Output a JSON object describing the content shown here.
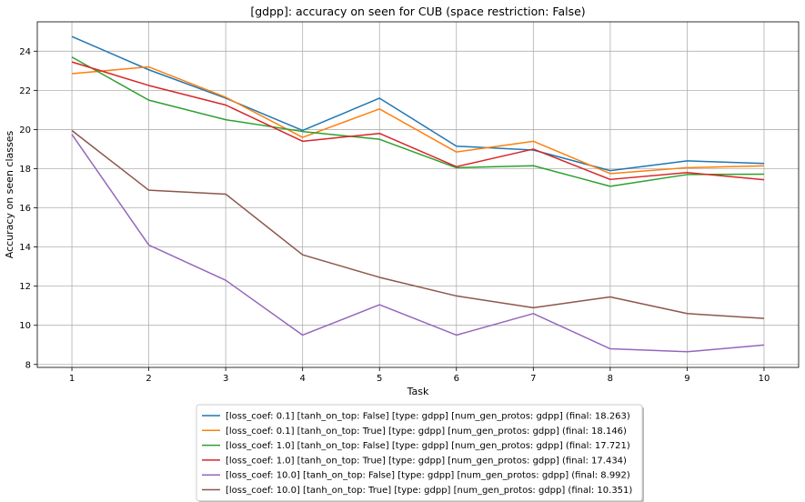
{
  "chart_data": {
    "type": "line",
    "title": "[gdpp]: accuracy on seen for CUB (space restriction: False)",
    "xlabel": "Task",
    "ylabel": "Accuracy on seen classes",
    "x": [
      1,
      2,
      3,
      4,
      5,
      6,
      7,
      8,
      9,
      10
    ],
    "xlim": [
      0.55,
      10.45
    ],
    "ylim": [
      7.85,
      25.5
    ],
    "yticks": [
      8,
      10,
      12,
      14,
      16,
      18,
      20,
      22,
      24
    ],
    "grid": true,
    "legend_position": "below",
    "series": [
      {
        "name": "[loss_coef: 0.1] [tanh_on_top: False] [type: gdpp] [num_gen_protos: gdpp] (final:  18.263)",
        "color": "#1f77b4",
        "values": [
          24.75,
          23.05,
          21.6,
          19.95,
          21.6,
          19.15,
          18.95,
          17.9,
          18.4,
          18.263
        ]
      },
      {
        "name": "[loss_coef: 0.1] [tanh_on_top: True] [type: gdpp] [num_gen_protos: gdpp] (final:  18.146)",
        "color": "#ff7f0e",
        "values": [
          22.85,
          23.2,
          21.65,
          19.6,
          21.05,
          18.85,
          19.4,
          17.75,
          18.05,
          18.146
        ]
      },
      {
        "name": "[loss_coef: 1.0] [tanh_on_top: False] [type: gdpp] [num_gen_protos: gdpp] (final:  17.721)",
        "color": "#2ca02c",
        "values": [
          23.7,
          21.5,
          20.5,
          19.9,
          19.5,
          18.05,
          18.15,
          17.1,
          17.7,
          17.721
        ]
      },
      {
        "name": "[loss_coef: 1.0] [tanh_on_top: True] [type: gdpp] [num_gen_protos: gdpp] (final:  17.434)",
        "color": "#d62728",
        "values": [
          23.45,
          22.25,
          21.25,
          19.4,
          19.8,
          18.1,
          19.0,
          17.45,
          17.8,
          17.434
        ]
      },
      {
        "name": "[loss_coef: 10.0] [tanh_on_top: False] [type: gdpp] [num_gen_protos: gdpp] (final:  8.992)",
        "color": "#9467bd",
        "values": [
          19.75,
          14.1,
          12.3,
          9.5,
          11.05,
          9.5,
          10.6,
          8.8,
          8.65,
          8.992
        ]
      },
      {
        "name": "[loss_coef: 10.0] [tanh_on_top: True] [type: gdpp] [num_gen_protos: gdpp] (final:  10.351)",
        "color": "#8c564b",
        "values": [
          19.95,
          16.9,
          16.7,
          13.6,
          12.45,
          11.5,
          10.9,
          11.45,
          10.6,
          10.351
        ]
      }
    ]
  }
}
